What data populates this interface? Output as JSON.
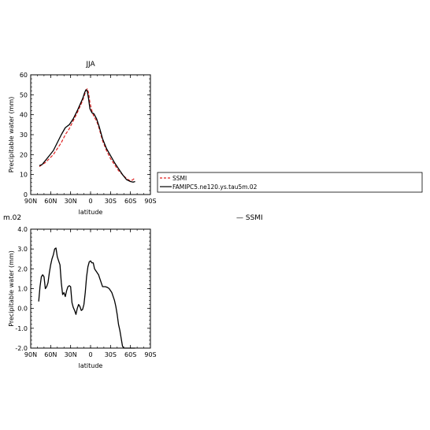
{
  "chart_data": [
    {
      "type": "line",
      "title": "JJA",
      "xlabel": "latitude",
      "ylabel": "Precipitable water (mm)",
      "xlim": [
        90,
        -90
      ],
      "ylim": [
        0,
        60
      ],
      "x_ticks": [
        90,
        60,
        30,
        0,
        -30,
        -60,
        -90
      ],
      "x_tick_labels": [
        "90N",
        "60N",
        "30N",
        "0",
        "30S",
        "60S",
        "90S"
      ],
      "y_ticks": [
        0,
        10,
        20,
        30,
        40,
        50,
        60
      ],
      "y_tick_labels": [
        "0",
        "10",
        "20",
        "30",
        "40",
        "50",
        "60"
      ],
      "legend": {
        "position": "right",
        "entries": [
          "SSMI",
          "FAMIPC5.ne120.ys.tau5m.02"
        ]
      },
      "series": [
        {
          "name": "SSMI",
          "color": "#e02020",
          "dash": true,
          "x": [
            77,
            73,
            68,
            62,
            56,
            50,
            44,
            38,
            32,
            26,
            20,
            16,
            12,
            9,
            7,
            5,
            3,
            1,
            -2,
            -5,
            -9,
            -13,
            -18,
            -24,
            -30,
            -36,
            -42,
            -48,
            -54,
            -60,
            -64,
            -67
          ],
          "y": [
            14,
            15,
            16,
            18,
            20,
            23,
            26,
            30,
            33,
            37,
            41,
            44,
            47,
            50,
            52,
            53,
            51,
            46,
            42,
            39,
            37,
            33,
            27,
            22,
            18,
            15,
            12,
            10,
            8,
            6.8,
            7.5,
            8.5
          ]
        },
        {
          "name": "FAMIPC5.ne120.ys.tau5m.02",
          "color": "#000000",
          "dash": false,
          "x": [
            77,
            73,
            68,
            62,
            56,
            50,
            44,
            38,
            32,
            26,
            20,
            16,
            12,
            9,
            7,
            5,
            3,
            1,
            -2,
            -5,
            -9,
            -13,
            -18,
            -24,
            -30,
            -36,
            -42,
            -48,
            -54,
            -60,
            -64,
            -67
          ],
          "y": [
            14.5,
            15,
            17,
            19.5,
            22,
            26,
            30,
            33.5,
            35,
            38,
            42,
            45,
            48,
            51,
            52.5,
            52,
            48,
            43,
            41,
            40.5,
            38,
            34,
            28,
            23,
            19.5,
            16,
            13,
            10,
            7.5,
            6.5,
            6.2,
            6.5
          ]
        }
      ]
    },
    {
      "type": "line",
      "title": "m.02",
      "xlabel": "latitude",
      "ylabel": "Precipitable water (mm)",
      "xlim": [
        90,
        -90
      ],
      "ylim": [
        -2,
        4
      ],
      "x_ticks": [
        90,
        60,
        30,
        0,
        -30,
        -60,
        -90
      ],
      "x_tick_labels": [
        "90N",
        "60N",
        "30N",
        "0",
        "30S",
        "60S",
        "90S"
      ],
      "y_ticks": [
        -2,
        -1,
        0,
        1,
        2,
        3,
        4
      ],
      "y_tick_labels": [
        "-2.0",
        "-1.0",
        "0.0",
        "1.0",
        "2.0",
        "3.0",
        "4.0"
      ],
      "overlay_legend": "—  SSMI",
      "series": [
        {
          "color": "#000000",
          "x": [
            78,
            76,
            74,
            72,
            70,
            68,
            66,
            64,
            62,
            60,
            58,
            56,
            54,
            52,
            50,
            48,
            46,
            44,
            42,
            40,
            38,
            36,
            34,
            32,
            30,
            28,
            26,
            24,
            22,
            20,
            18,
            16,
            14,
            12,
            10,
            8,
            6,
            4,
            2,
            0,
            -2,
            -4,
            -6,
            -8,
            -10,
            -12,
            -14,
            -16,
            -18,
            -20,
            -22,
            -24,
            -26,
            -28,
            -30,
            -32,
            -34,
            -36,
            -38,
            -40,
            -42,
            -44,
            -46,
            -48,
            -50,
            -52,
            -54,
            -56,
            -58,
            -60,
            -62,
            -64,
            -65,
            -66,
            -67
          ],
          "y": [
            0.35,
            1.1,
            1.6,
            1.7,
            1.6,
            1.0,
            1.1,
            1.3,
            1.8,
            2.2,
            2.5,
            2.7,
            3.0,
            3.05,
            2.6,
            2.4,
            2.2,
            1.3,
            0.7,
            0.8,
            0.6,
            0.9,
            1.1,
            1.15,
            1.1,
            0.3,
            0.05,
            -0.1,
            -0.3,
            0.0,
            0.2,
            0.1,
            -0.1,
            -0.05,
            0.2,
            0.8,
            1.6,
            2.1,
            2.35,
            2.4,
            2.3,
            2.3,
            2.0,
            1.9,
            1.8,
            1.7,
            1.5,
            1.3,
            1.1,
            1.1,
            1.1,
            1.08,
            1.05,
            1.0,
            0.9,
            0.8,
            0.6,
            0.4,
            0.1,
            -0.3,
            -0.8,
            -1.1,
            -1.5,
            -1.9,
            -2.0,
            -2.0,
            -2.0,
            -2.0,
            -2.0,
            -2.0,
            -2.0,
            -2.0,
            -2.0,
            -2.0,
            -2.0
          ]
        }
      ]
    }
  ]
}
